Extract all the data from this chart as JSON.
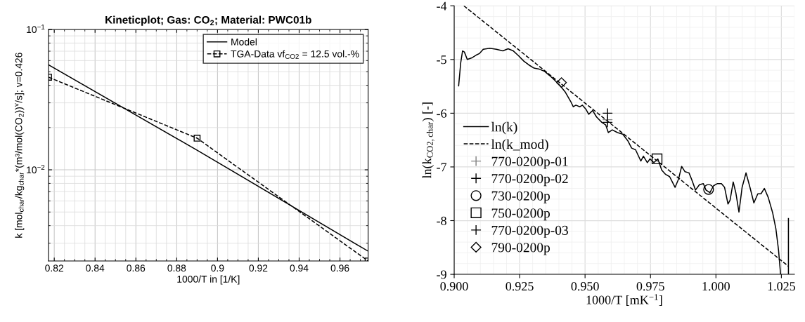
{
  "chart_data": [
    {
      "type": "line",
      "title": "Kineticplot; Gas: CO$_{2}$; Material: PWC01b",
      "xlabel": "1000/T in [1/K]",
      "ylabel": "k [mol$_{char}$/kg$_{char}$*(m³/mol(CO$_{2}$))$^{v}$/s]; v=0.426",
      "log": "y",
      "xlim": [
        0.8172,
        0.9738
      ],
      "ylim": [
        0.00224,
        0.1
      ],
      "xticks": [
        0.82,
        0.84,
        0.86,
        0.88,
        {
          "value": 0.9,
          "label": "0.9"
        },
        0.92,
        0.94,
        0.96
      ],
      "yticks": [
        {
          "value": 0.01,
          "label": "10$^{−2}$"
        },
        {
          "value": 0.1,
          "label": "10$^{−1}$"
        }
      ],
      "grid": true,
      "legend": "top right",
      "series": [
        {
          "name": "Model",
          "color": "#000000",
          "line_style": "solid",
          "marker": "none",
          "x": [
            0.8172,
            0.89,
            0.9738
          ],
          "values": [
            0.056,
            0.0138,
            0.00263
          ]
        },
        {
          "name": "TGA-Data vf$_{CO2}$ = 12.5 vol.-%",
          "color": "#000000",
          "line_style": "dashed",
          "marker": "square",
          "x": [
            0.8172,
            0.89,
            0.9738
          ],
          "values": [
            0.0457,
            0.0168,
            0.00224
          ]
        }
      ]
    },
    {
      "type": "line",
      "xlabel": "1000/T [mK$^{−1}$]",
      "ylabel": "ln(k$_{CO2,char}$) [-]",
      "xlim": [
        0.9,
        1.03
      ],
      "ylim": [
        -9,
        -4
      ],
      "xticks": [
        {
          "value": 0.9,
          "label": "0.900"
        },
        {
          "value": 0.925,
          "label": "0.925"
        },
        {
          "value": 0.95,
          "label": "0.950"
        },
        {
          "value": 0.975,
          "label": "0.975"
        },
        {
          "value": 1.0,
          "label": "1.000"
        },
        {
          "value": 1.025,
          "label": "1.025"
        }
      ],
      "yticks": [
        -9,
        -8,
        -7,
        -6,
        -5,
        -4
      ],
      "grid": true,
      "legend": "left",
      "series": [
        {
          "name": "ln(k)",
          "color": "#000000",
          "line_style": "solid",
          "marker": "none",
          "x": [
            0.9017,
            0.9025,
            0.9032,
            0.9039,
            0.905,
            0.9067,
            0.9087,
            0.9096,
            0.9111,
            0.9136,
            0.9161,
            0.9186,
            0.9206,
            0.9226,
            0.9246,
            0.9266,
            0.9285,
            0.9305,
            0.9325,
            0.9345,
            0.9365,
            0.9385,
            0.9405,
            0.9425,
            0.9445,
            0.9455,
            0.9465,
            0.948,
            0.949,
            0.9504,
            0.9514,
            0.9529,
            0.9544,
            0.9564,
            0.9579,
            0.9589,
            0.9604,
            0.9624,
            0.9644,
            0.9663,
            0.9678,
            0.9693,
            0.9713,
            0.9723,
            0.9738,
            0.9748,
            0.9763,
            0.9778,
            0.9793,
            0.9808,
            0.9823,
            0.9844,
            0.9857,
            0.9869,
            0.9882,
            0.9897,
            0.9907,
            0.9922,
            0.9937,
            0.9952,
            0.9962,
            0.9977,
            0.9991,
            1.0006,
            1.0021,
            1.0033,
            1.0046,
            1.0054,
            1.0066,
            1.0076,
            1.0088,
            1.01,
            1.0115,
            1.013,
            1.0145,
            1.016,
            1.0172,
            1.0185,
            1.02,
            1.0217,
            1.0229,
            1.0239,
            1.0247,
            1.026,
            1.0277,
            1.0277
          ],
          "values": [
            -5.49,
            -5.06,
            -4.84,
            -4.86,
            -5.0,
            -4.97,
            -4.91,
            -4.89,
            -4.81,
            -4.79,
            -4.81,
            -4.84,
            -4.8,
            -4.84,
            -4.93,
            -5.03,
            -5.1,
            -5.16,
            -5.18,
            -5.22,
            -5.3,
            -5.39,
            -5.49,
            -5.61,
            -5.78,
            -5.88,
            -5.85,
            -5.88,
            -5.85,
            -5.93,
            -6.02,
            -5.95,
            -6.07,
            -6.17,
            -6.22,
            -6.36,
            -6.31,
            -6.36,
            -6.39,
            -6.51,
            -6.65,
            -6.68,
            -6.89,
            -6.8,
            -6.92,
            -6.85,
            -6.92,
            -6.85,
            -7.06,
            -7.14,
            -7.18,
            -7.38,
            -7.23,
            -6.99,
            -7.09,
            -7.11,
            -7.23,
            -7.43,
            -7.33,
            -7.31,
            -7.43,
            -7.48,
            -7.35,
            -7.31,
            -7.31,
            -7.38,
            -7.69,
            -7.62,
            -7.28,
            -7.48,
            -7.84,
            -7.38,
            -7.11,
            -7.38,
            -7.67,
            -7.5,
            -7.5,
            -7.4,
            -7.57,
            -7.86,
            -8.15,
            -8.54,
            -9.0,
            null,
            -9.0,
            -7.96
          ]
        },
        {
          "name": "ln(k_mod)",
          "color": "#000000",
          "line_style": "dashed",
          "marker": "none",
          "x": [
            0.9037,
            1.0277
          ],
          "values": [
            -4.0,
            -8.85
          ]
        },
        {
          "name": "770-0200p-01",
          "type": "scatter",
          "color": "#808080",
          "marker": "plus",
          "x": [
            0.9586
          ],
          "values": [
            -6.12
          ]
        },
        {
          "name": "770-0200p-02",
          "type": "scatter",
          "color": "#000000",
          "marker": "plus",
          "x": [
            0.9586
          ],
          "values": [
            -6.0
          ]
        },
        {
          "name": "730-0200p",
          "type": "scatter",
          "color": "#000000",
          "marker": "circle",
          "x": [
            0.9972
          ],
          "values": [
            -7.42
          ]
        },
        {
          "name": "750-0200p",
          "type": "scatter",
          "color": "#000000",
          "marker": "square",
          "x": [
            0.9775
          ],
          "values": [
            -6.85
          ]
        },
        {
          "name": "770-0200p-03",
          "type": "scatter",
          "color": "#000000",
          "marker": "plus",
          "x": [
            0.9586
          ],
          "values": [
            -6.17
          ]
        },
        {
          "name": "790-0200p",
          "type": "scatter",
          "color": "#000000",
          "marker": "diamond",
          "x": [
            0.941
          ],
          "values": [
            -5.43
          ]
        }
      ]
    }
  ]
}
